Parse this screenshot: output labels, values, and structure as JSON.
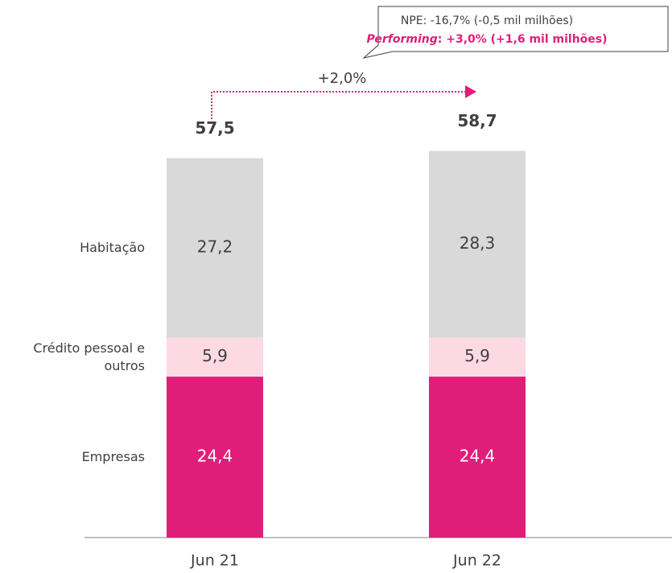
{
  "chart_data": {
    "type": "stacked_bar",
    "categories": [
      "Jun 21",
      "Jun 22"
    ],
    "series": [
      {
        "name": "Empresas",
        "color": "#e01e79",
        "label_color": "#ffffff",
        "values": [
          24.4,
          24.4
        ],
        "value_labels": [
          "24,4",
          "24,4"
        ]
      },
      {
        "name": "Crédito pessoal e outros",
        "color": "#fdd9e4",
        "label_color": "#404040",
        "values": [
          5.9,
          5.9
        ],
        "value_labels": [
          "5,9",
          "5,9"
        ]
      },
      {
        "name": "Habitação",
        "color": "#d9d9d9",
        "label_color": "#404040",
        "values": [
          27.2,
          28.3
        ],
        "value_labels": [
          "27,2",
          "28,3"
        ]
      }
    ],
    "totals": [
      57.5,
      58.7
    ],
    "total_labels": [
      "57,5",
      "58,7"
    ],
    "growth_label": "+2,0%",
    "callout": {
      "npe": "NPE: -16,7% (-0,5 mil milhões)",
      "performing_label": "Performing",
      "performing_text": ": +3,0% (+1,6 mil milhões)"
    }
  }
}
